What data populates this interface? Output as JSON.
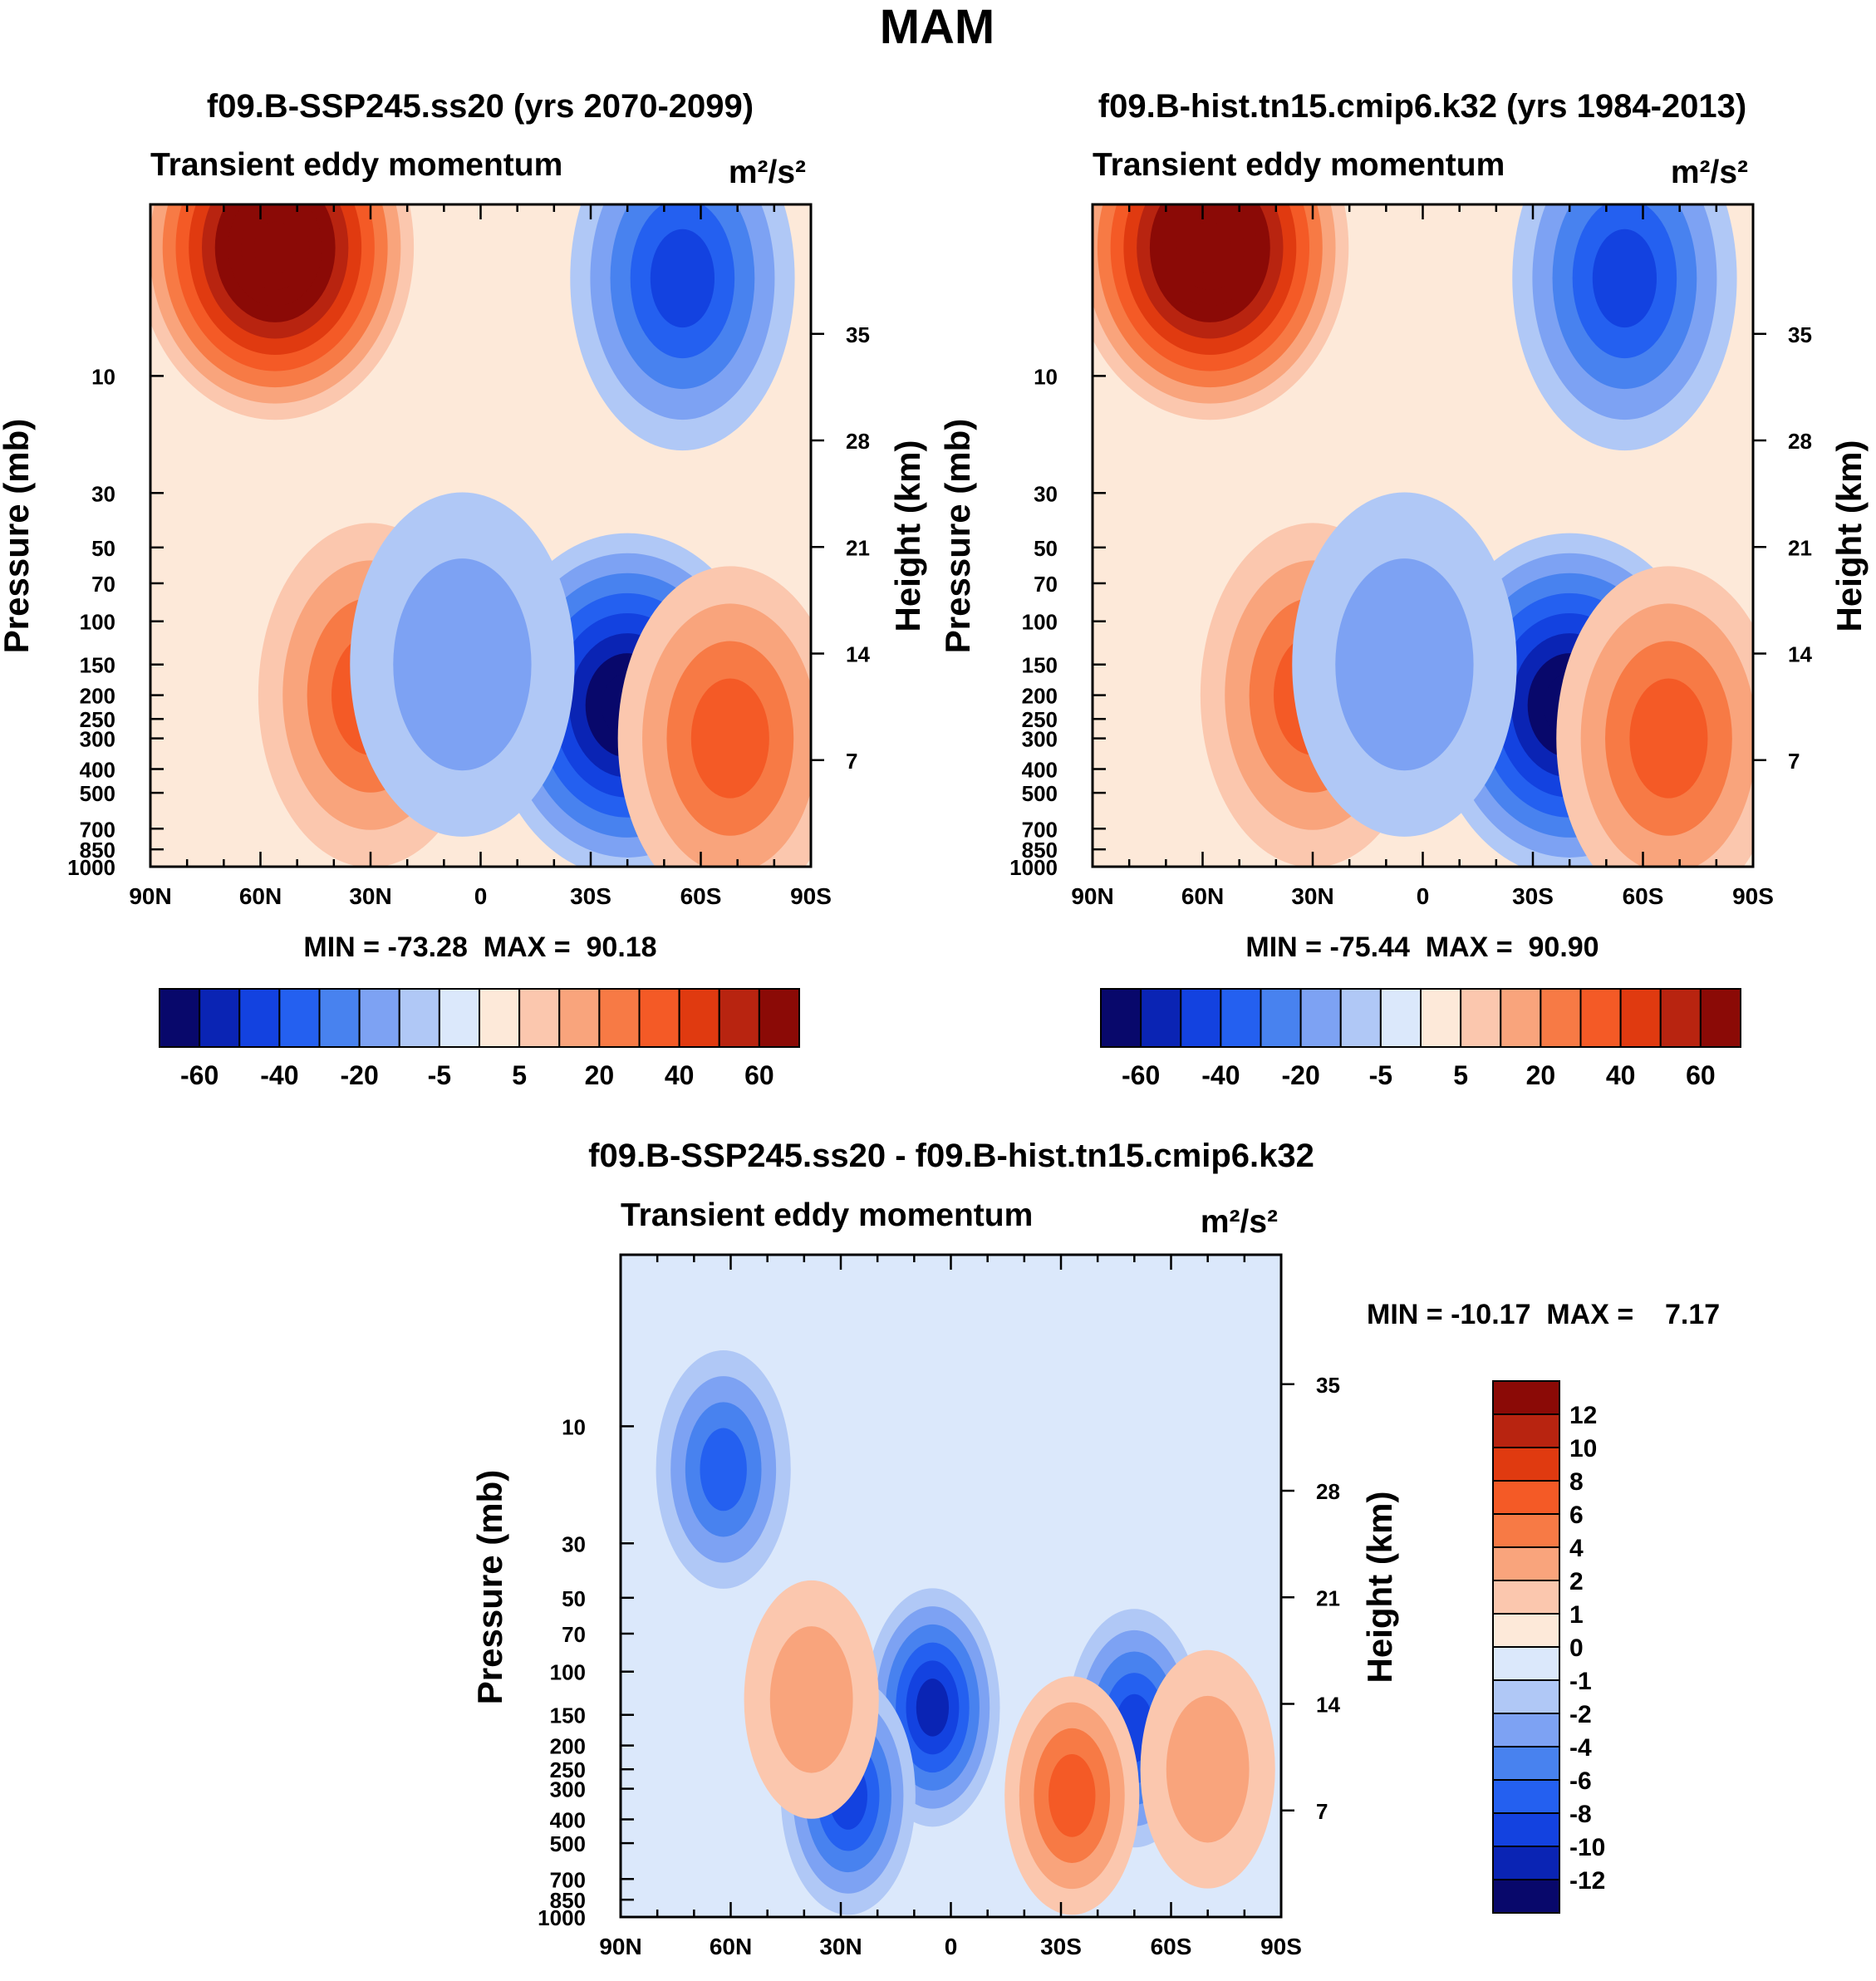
{
  "figure": {
    "title": "MAM"
  },
  "palette": {
    "neg": [
      "#08086b",
      "#0a24b4",
      "#1342e0",
      "#2460f0",
      "#4882ef",
      "#7da2f3",
      "#b0c8f6",
      "#dbe8fb"
    ],
    "pos": [
      "#fde9d9",
      "#fbc7ae",
      "#f9a47c",
      "#f77a45",
      "#f45a26",
      "#e03a10",
      "#b82410",
      "#8b0a06"
    ]
  },
  "chart_data": [
    {
      "type": "heatmap",
      "id": "ssp245",
      "title": "f09.B-SSP245.ss20 (yrs 2070-2099)",
      "subtitle_left": "Transient eddy momentum",
      "units": "m²/s²",
      "ylabel": "Pressure (mb)",
      "y2label": "Height (km)",
      "x_ticks": [
        "90N",
        "60N",
        "30N",
        "0",
        "30S",
        "60S",
        "90S"
      ],
      "x_range": [
        90,
        -90
      ],
      "y_ticks": [
        "10",
        "30",
        "50",
        "70",
        "100",
        "150",
        "200",
        "250",
        "300",
        "400",
        "500",
        "700",
        "850",
        "1000"
      ],
      "y2_ticks": [
        "35",
        "28",
        "21",
        "14",
        "7"
      ],
      "min_max": "MIN = -73.28  MAX =  90.18",
      "colorbar": {
        "orientation": "horizontal",
        "labels": [
          "-60",
          "-40",
          "-20",
          "-5",
          "5",
          "20",
          "40",
          "60"
        ],
        "levels": [
          -70,
          -60,
          -50,
          -40,
          -30,
          -20,
          -10,
          -5,
          0,
          5,
          10,
          20,
          30,
          40,
          50,
          60,
          70
        ]
      },
      "features": [
        {
          "lat": 56,
          "p": 3,
          "value": 90
        },
        {
          "lat": 30,
          "p": 200,
          "value": 38
        },
        {
          "lat": -40,
          "p": 220,
          "value": -73
        },
        {
          "lat": -55,
          "p": 4,
          "value": -45
        },
        {
          "lat": 5,
          "p": 150,
          "value": -15
        },
        {
          "lat": -68,
          "p": 300,
          "value": 32
        }
      ]
    },
    {
      "type": "heatmap",
      "id": "hist",
      "title": "f09.B-hist.tn15.cmip6.k32 (yrs 1984-2013)",
      "subtitle_left": "Transient eddy momentum",
      "units": "m²/s²",
      "ylabel": "Pressure (mb)",
      "y2label": "Height (km)",
      "x_ticks": [
        "90N",
        "60N",
        "30N",
        "0",
        "30S",
        "60S",
        "90S"
      ],
      "x_range": [
        90,
        -90
      ],
      "y_ticks": [
        "10",
        "30",
        "50",
        "70",
        "100",
        "150",
        "200",
        "250",
        "300",
        "400",
        "500",
        "700",
        "850",
        "1000"
      ],
      "y2_ticks": [
        "35",
        "28",
        "21",
        "14",
        "7"
      ],
      "min_max": "MIN = -75.44  MAX =  90.90",
      "colorbar": {
        "orientation": "horizontal",
        "labels": [
          "-60",
          "-40",
          "-20",
          "-5",
          "5",
          "20",
          "40",
          "60"
        ],
        "levels": [
          -70,
          -60,
          -50,
          -40,
          -30,
          -20,
          -10,
          -5,
          0,
          5,
          10,
          20,
          30,
          40,
          50,
          60,
          70
        ]
      },
      "features": [
        {
          "lat": 58,
          "p": 3,
          "value": 91
        },
        {
          "lat": 30,
          "p": 200,
          "value": 36
        },
        {
          "lat": -40,
          "p": 220,
          "value": -75
        },
        {
          "lat": -55,
          "p": 4,
          "value": -45
        },
        {
          "lat": 5,
          "p": 150,
          "value": -12
        },
        {
          "lat": -67,
          "p": 300,
          "value": 30
        }
      ]
    },
    {
      "type": "heatmap",
      "id": "diff",
      "title": "f09.B-SSP245.ss20 - f09.B-hist.tn15.cmip6.k32",
      "subtitle_left": "Transient eddy momentum",
      "units": "m²/s²",
      "ylabel": "Pressure (mb)",
      "y2label": "Height (km)",
      "x_ticks": [
        "90N",
        "60N",
        "30N",
        "0",
        "30S",
        "60S",
        "90S"
      ],
      "x_range": [
        90,
        -90
      ],
      "y_ticks": [
        "10",
        "30",
        "50",
        "70",
        "100",
        "150",
        "200",
        "250",
        "300",
        "400",
        "500",
        "700",
        "850",
        "1000"
      ],
      "y2_ticks": [
        "35",
        "28",
        "21",
        "14",
        "7"
      ],
      "min_max": "MIN = -10.17  MAX =    7.17",
      "colorbar": {
        "orientation": "vertical",
        "labels": [
          "12",
          "10",
          "8",
          "6",
          "4",
          "2",
          "1",
          "0",
          "-1",
          "-2",
          "-4",
          "-6",
          "-8",
          "-10",
          "-12"
        ],
        "levels": [
          -14,
          -12,
          -10,
          -8,
          -6,
          -4,
          -2,
          -1,
          0,
          1,
          2,
          4,
          6,
          8,
          10,
          12,
          14
        ]
      },
      "features": [
        {
          "lat": 62,
          "p": 15,
          "value": -6
        },
        {
          "lat": 5,
          "p": 140,
          "value": -10
        },
        {
          "lat": 28,
          "p": 320,
          "value": -8
        },
        {
          "lat": -50,
          "p": 170,
          "value": -8
        },
        {
          "lat": -33,
          "p": 320,
          "value": 7
        },
        {
          "lat": 38,
          "p": 130,
          "value": 3
        },
        {
          "lat": -70,
          "p": 250,
          "value": 3
        }
      ]
    }
  ]
}
